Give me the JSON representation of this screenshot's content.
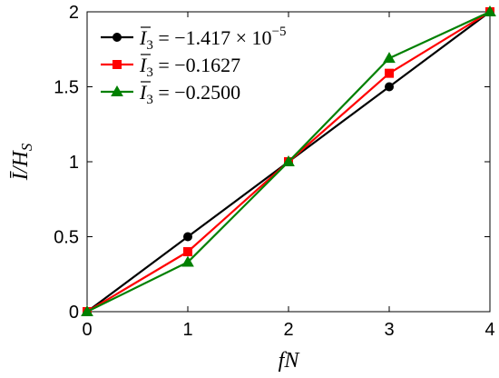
{
  "chart_data": {
    "type": "line",
    "xlabel": "fN",
    "ylabel": "Ī/H_S",
    "xlim": [
      0,
      4
    ],
    "ylim": [
      0,
      2
    ],
    "xticks": [
      0,
      1,
      2,
      3,
      4
    ],
    "yticks": [
      0,
      0.5,
      1,
      1.5,
      2
    ],
    "xtick_labels": [
      "0",
      "1",
      "2",
      "3",
      "4"
    ],
    "ytick_labels": [
      "0",
      "0.5",
      "1",
      "1.5",
      "2"
    ],
    "grid": false,
    "legend_position": "top-left",
    "x": [
      0,
      1,
      2,
      3,
      4
    ],
    "series": [
      {
        "name": "Ī₃ = −1.417 × 10⁻⁵",
        "name_parts": {
          "lhs": "I",
          "sub": "3",
          "rhs": " = −1.417 × 10",
          "sup": "−5"
        },
        "color": "#000000",
        "marker": "circle",
        "values": [
          0,
          0.5,
          1.0,
          1.5,
          2.0
        ]
      },
      {
        "name": "Ī₃ = −0.1627",
        "name_parts": {
          "lhs": "I",
          "sub": "3",
          "rhs": " = −0.1627",
          "sup": ""
        },
        "color": "#ff0000",
        "marker": "square",
        "values": [
          0,
          0.4,
          1.0,
          1.59,
          2.0
        ]
      },
      {
        "name": "Ī₃ = −0.2500",
        "name_parts": {
          "lhs": "I",
          "sub": "3",
          "rhs": " = −0.2500",
          "sup": ""
        },
        "color": "#008000",
        "marker": "triangle",
        "values": [
          0,
          0.33,
          1.0,
          1.69,
          2.0
        ]
      }
    ]
  }
}
